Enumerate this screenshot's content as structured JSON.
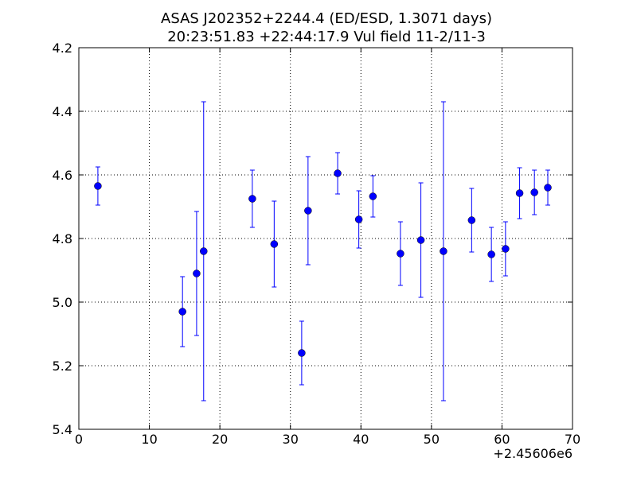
{
  "chart_data": {
    "type": "errorbar",
    "title": "ASAS J202352+2244.4 (ED/ESD, 1.3071 days)",
    "subtitle": "20:23:51.83 +22:44:17.9 Vul field 11-2/11-3",
    "x_offset_label": "+2.45606e6",
    "x": [
      2.7,
      14.7,
      16.7,
      17.7,
      24.6,
      27.7,
      31.6,
      32.5,
      36.7,
      39.7,
      41.7,
      45.6,
      48.5,
      51.7,
      55.7,
      58.5,
      60.5,
      62.5,
      64.6,
      66.5
    ],
    "values": [
      4.635,
      5.03,
      4.91,
      4.84,
      4.675,
      4.8175,
      5.16,
      4.7125,
      4.595,
      4.74,
      4.6675,
      4.8475,
      4.805,
      4.84,
      4.7425,
      4.85,
      4.8325,
      4.6575,
      4.655,
      4.64
    ],
    "errors": [
      0.06,
      0.11,
      0.195,
      0.47,
      0.09,
      0.135,
      0.1,
      0.17,
      0.065,
      0.09,
      0.065,
      0.1,
      0.18,
      0.47,
      0.1,
      0.085,
      0.085,
      0.08,
      0.07,
      0.055
    ],
    "color": "#0000ff",
    "xlim": [
      0,
      70
    ],
    "xticks": [
      0,
      10,
      20,
      30,
      40,
      50,
      60,
      70
    ],
    "ylim": [
      4.2,
      5.4
    ],
    "yticks": [
      4.2,
      4.4,
      4.6,
      4.8,
      {
        "value": 5,
        "label": "5.0"
      },
      5.2,
      5.4
    ],
    "invert_y": true,
    "grid": true
  }
}
